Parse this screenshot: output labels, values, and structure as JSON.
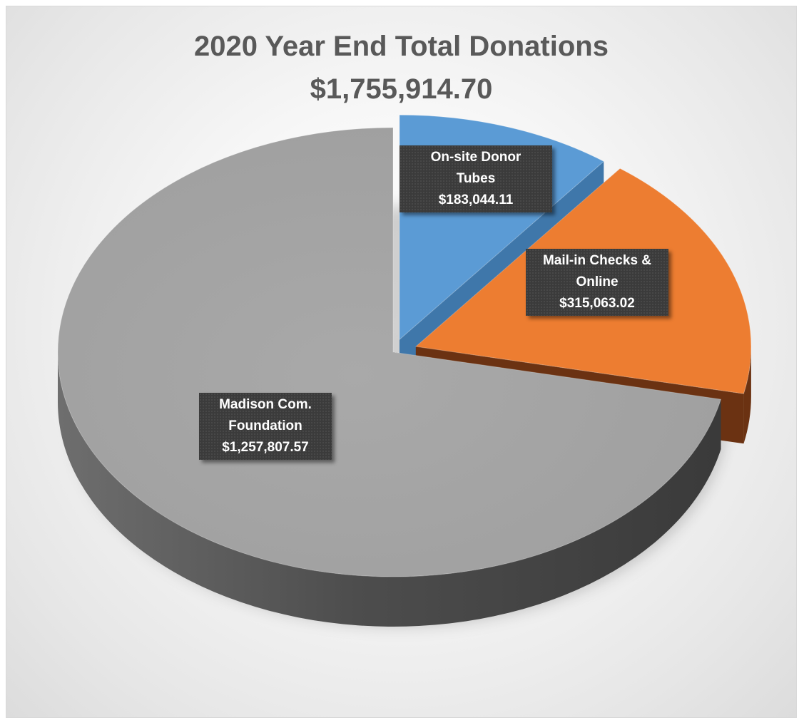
{
  "chart_data": {
    "type": "pie",
    "title": "2020 Year End Total Donations",
    "subtitle": "$1,755,914.70",
    "slices": [
      {
        "label_lines": [
          "On-site Donor",
          "Tubes"
        ],
        "value_label": "$183,044.11",
        "value": 183044.11,
        "color": "#5b9bd5",
        "side_color": "#3f77aa"
      },
      {
        "label_lines": [
          "Mail-in Checks &",
          "Online"
        ],
        "value_label": "$315,063.02",
        "value": 315063.02,
        "color": "#ed7d31",
        "side_color": "#6b3212"
      },
      {
        "label_lines": [
          "Madison Com.",
          "Foundation"
        ],
        "value_label": "$1,257,807.57",
        "value": 1257807.57,
        "color": "#a5a5a5",
        "side_color": "#4a4a4a"
      }
    ]
  }
}
